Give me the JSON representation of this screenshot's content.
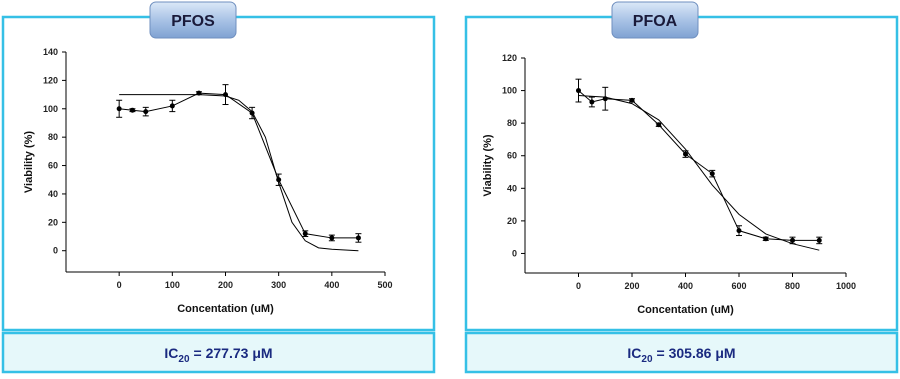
{
  "chart_data": [
    {
      "type": "line",
      "title": "PFOS",
      "x_label": "Concentation (uM)",
      "y_label": "Viability (%)",
      "xlim": [
        -100,
        500
      ],
      "xticks": [
        0,
        100,
        200,
        300,
        400,
        500
      ],
      "ylim": [
        -15,
        140
      ],
      "yticks": [
        0,
        20,
        40,
        60,
        80,
        100,
        120,
        140
      ],
      "points": {
        "x": [
          0,
          25,
          50,
          100,
          150,
          200,
          250,
          300,
          350,
          400,
          450
        ],
        "values": [
          100,
          99,
          98,
          102,
          111,
          110,
          97,
          50,
          12,
          9,
          9
        ],
        "errors": [
          6,
          1,
          3,
          4,
          1,
          7,
          4,
          4,
          2,
          2,
          3
        ]
      },
      "fit": {
        "x": [
          0,
          50,
          100,
          150,
          200,
          225,
          250,
          275,
          300,
          325,
          350,
          375,
          400,
          450
        ],
        "values": [
          110,
          110,
          110,
          110,
          109,
          106,
          98,
          80,
          48,
          20,
          7,
          2,
          1,
          0
        ]
      },
      "color": "#000000",
      "annotation": {
        "prefix": "IC",
        "subscript": "20",
        "text": "= 277.73 μM"
      }
    },
    {
      "type": "line",
      "title": "PFOA",
      "x_label": "Concentation (uM)",
      "y_label": "Viability (%)",
      "xlim": [
        -200,
        1000
      ],
      "xticks": [
        0,
        200,
        400,
        600,
        800,
        1000
      ],
      "ylim": [
        -12,
        120
      ],
      "yticks": [
        0,
        20,
        40,
        60,
        80,
        100,
        120
      ],
      "points": {
        "x": [
          0,
          50,
          100,
          200,
          300,
          400,
          500,
          600,
          700,
          800,
          900
        ],
        "values": [
          100,
          93,
          95,
          94,
          79,
          61,
          49,
          14,
          9,
          8,
          8
        ],
        "errors": [
          7,
          3,
          7,
          1,
          1,
          2,
          2,
          3,
          1,
          2,
          2
        ]
      },
      "fit": {
        "x": [
          0,
          100,
          200,
          300,
          400,
          500,
          600,
          700,
          800,
          900
        ],
        "values": [
          97,
          96,
          92,
          82,
          64,
          42,
          24,
          12,
          6,
          2
        ]
      },
      "color": "#000000",
      "annotation": {
        "prefix": "IC",
        "subscript": "20",
        "text": "= 305.86 μM"
      }
    }
  ]
}
